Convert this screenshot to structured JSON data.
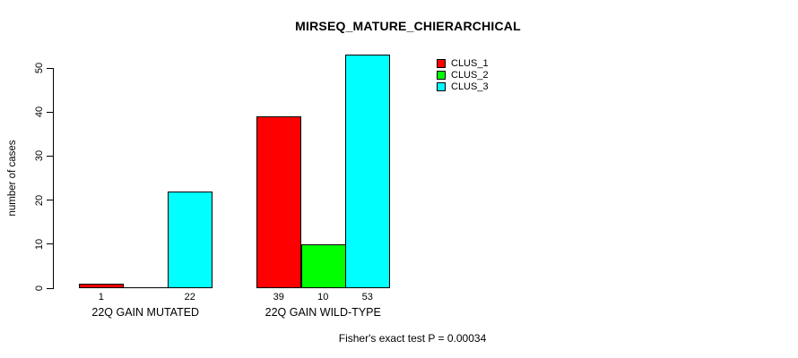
{
  "chart_data": {
    "type": "bar",
    "title": "MIRSEQ_MATURE_CHIERARCHICAL",
    "ylabel": "number of cases",
    "xlabel": "",
    "ylim": [
      0,
      50
    ],
    "yticks": [
      0,
      10,
      20,
      30,
      40,
      50
    ],
    "categories": [
      "22Q GAIN MUTATED",
      "22Q GAIN WILD-TYPE"
    ],
    "series": [
      {
        "name": "CLUS_1",
        "color": "#ff0000",
        "values": [
          1,
          39
        ]
      },
      {
        "name": "CLUS_2",
        "color": "#00ff00",
        "values": [
          0,
          10
        ]
      },
      {
        "name": "CLUS_3",
        "color": "#00ffff",
        "values": [
          22,
          53
        ]
      }
    ],
    "bar_value_labels": [
      [
        "1",
        "",
        "22"
      ],
      [
        "39",
        "10",
        "53"
      ]
    ],
    "legend": {
      "position": "top-right",
      "entries": [
        "CLUS_1",
        "CLUS_2",
        "CLUS_3"
      ]
    },
    "footnote": "Fisher's exact test P = 0.00034",
    "grid": false,
    "axis_color": "#000000",
    "background": "#ffffff"
  }
}
